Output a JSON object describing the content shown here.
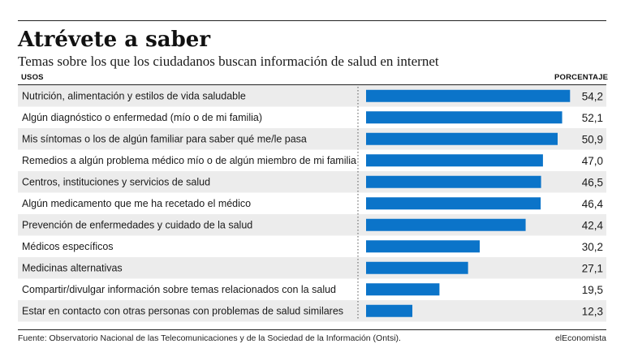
{
  "header": {
    "title": "Atrévete a saber",
    "subtitle": "Temas sobre los que los ciudadanos buscan información de salud en internet",
    "col_left": "USOS",
    "col_right": "PORCENTAJE"
  },
  "footer": {
    "source": "Fuente: Observatorio Nacional de las Telecomunicaciones y de la Sociedad de la Información (Ontsi).",
    "credit": "elEconomista"
  },
  "colors": {
    "bar": "#0b74c9",
    "stripe": "#ececec",
    "text": "#1a1a1a"
  },
  "chart_data": {
    "type": "bar",
    "orientation": "horizontal",
    "categories": [
      "Nutrición, alimentación y estilos de vida saludable",
      "Algún diagnóstico o enfermedad (mío o de mi familia)",
      "Mis síntomas o los de algún familiar para saber qué me/le pasa",
      "Remedios a algún problema médico mío o de algún miembro de mi familia",
      "Centros, instituciones y servicios de salud",
      "Algún medicamento que me ha recetado el médico",
      "Prevención de enfermedades y cuidado de la salud",
      "Médicos específicos",
      "Medicinas alternativas",
      "Compartir/divulgar información sobre temas relacionados con la salud",
      "Estar en contacto con otras personas con problemas de salud similares"
    ],
    "values": [
      54.2,
      52.1,
      50.9,
      47.0,
      46.5,
      46.4,
      42.4,
      30.2,
      27.1,
      19.5,
      12.3
    ],
    "labels": [
      "54,2",
      "52,1",
      "50,9",
      "47,0",
      "46,5",
      "46,4",
      "42,4",
      "30,2",
      "27,1",
      "19,5",
      "12,3"
    ],
    "xlim": [
      0,
      55
    ],
    "grid": false,
    "legend": "none"
  }
}
